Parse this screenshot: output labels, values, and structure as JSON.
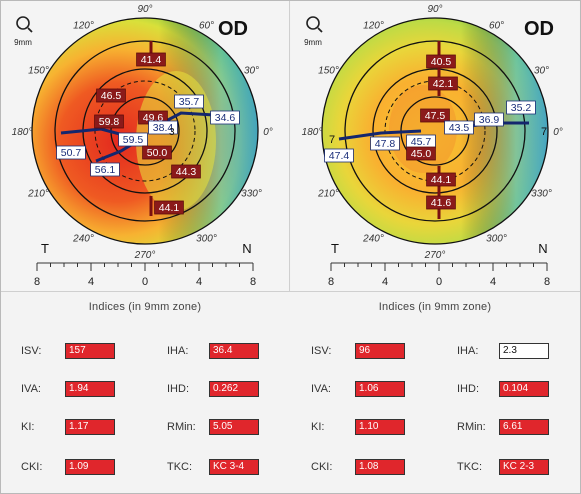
{
  "maps": [
    {
      "eye": "OD",
      "zoom": "9mm",
      "side_left": "T",
      "side_right": "N",
      "angles": {
        "a90": "90°",
        "a60": "60°",
        "a30": "30°",
        "a0": "0°",
        "a330": "330°",
        "a300": "300°",
        "a270": "270°",
        "a240": "240°",
        "a210": "210°",
        "a180": "180°",
        "a150": "150°",
        "a120": "120°"
      },
      "scale_labels": [
        "8",
        "4",
        "0",
        "4",
        "8"
      ],
      "values": [
        "41.4",
        "46.5",
        "35.7",
        "34.6",
        "49.6",
        "38.4",
        "59.8",
        "50.7",
        "59.5",
        "56.1",
        "50.0",
        "44.3",
        "44.1"
      ],
      "center_mark": "3"
    },
    {
      "eye": "OD",
      "zoom": "9mm",
      "side_left": "T",
      "side_right": "N",
      "angles": {
        "a90": "90°",
        "a60": "60°",
        "a30": "30°",
        "a0": "0°",
        "a330": "330°",
        "a300": "300°",
        "a270": "270°",
        "a240": "240°",
        "a210": "210°",
        "a180": "180°",
        "a150": "150°",
        "a120": "120°"
      },
      "scale_labels": [
        "8",
        "4",
        "0",
        "4",
        "8"
      ],
      "values": [
        "40.5",
        "42.1",
        "47.5",
        "43.5",
        "36.9",
        "35.2",
        "47.4",
        "47.8",
        "45.7",
        "45.0",
        "44.1",
        "41.6"
      ],
      "edge_left": "7",
      "edge_right": "7"
    }
  ],
  "indices_panels": [
    {
      "title": "Indices (in 9mm zone)",
      "left": [
        {
          "label": "ISV:",
          "value": "157",
          "status": "abnormal"
        },
        {
          "label": "IVA:",
          "value": "1.94",
          "status": "abnormal"
        },
        {
          "label": "KI:",
          "value": "1.17",
          "status": "abnormal"
        },
        {
          "label": "CKI:",
          "value": "1.09",
          "status": "abnormal"
        }
      ],
      "right": [
        {
          "label": "IHA:",
          "value": "36.4",
          "status": "abnormal"
        },
        {
          "label": "IHD:",
          "value": "0.262",
          "status": "abnormal"
        },
        {
          "label": "RMin:",
          "value": "5.05",
          "status": "abnormal"
        },
        {
          "label": "TKC:",
          "value": "KC 3-4",
          "status": "abnormal"
        }
      ]
    },
    {
      "title": "Indices (in 9mm zone)",
      "left": [
        {
          "label": "ISV:",
          "value": "96",
          "status": "abnormal"
        },
        {
          "label": "IVA:",
          "value": "1.06",
          "status": "abnormal"
        },
        {
          "label": "KI:",
          "value": "1.10",
          "status": "abnormal"
        },
        {
          "label": "CKI:",
          "value": "1.08",
          "status": "abnormal"
        }
      ],
      "right": [
        {
          "label": "IHA:",
          "value": "2.3",
          "status": "normal"
        },
        {
          "label": "IHD:",
          "value": "0.104",
          "status": "abnormal"
        },
        {
          "label": "RMin:",
          "value": "6.61",
          "status": "abnormal"
        },
        {
          "label": "TKC:",
          "value": "KC 2-3",
          "status": "abnormal"
        }
      ]
    }
  ],
  "colors": {
    "abnormal": "#e0262c",
    "normal": "#ffffff",
    "label_box": "#8b1a1a"
  }
}
